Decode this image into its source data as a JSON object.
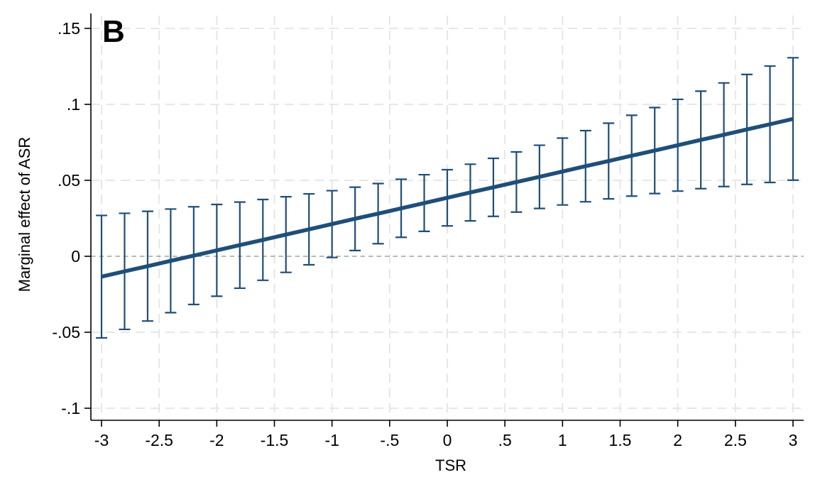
{
  "figure": {
    "panel_label": "B",
    "background": "#ffffff"
  },
  "chart_data": {
    "type": "line",
    "subtype": "marginal_effects_with_95ci_error_bars",
    "title": "",
    "panel_label": "B",
    "xlabel": "TSR",
    "ylabel": "Marginal effect of ASR",
    "xlim": [
      -3.09,
      3.16
    ],
    "ylim": [
      -0.108,
      0.158
    ],
    "x_tick_values": [
      -3,
      -2.5,
      -2,
      -1.5,
      -1,
      -0.5,
      0,
      0.5,
      1,
      1.5,
      2,
      2.5,
      3
    ],
    "x_tick_labels": [
      "-3",
      "-2.5",
      "-2",
      "-1.5",
      "-1",
      "-.5",
      "0",
      ".5",
      "1",
      "1.5",
      "2",
      "2.5",
      "3"
    ],
    "y_tick_values": [
      0.15,
      0.1,
      0.05,
      0,
      -0.05,
      -0.1
    ],
    "y_tick_labels": [
      ".15",
      ".1",
      ".05",
      "0",
      "-.05",
      "-.1"
    ],
    "grid": {
      "show": true,
      "style": "dashed",
      "axes": "both"
    },
    "zero_reference_line": true,
    "legend": {
      "show": false
    },
    "series": [
      {
        "name": "Marginal effect of ASR",
        "x": [
          -3.0,
          -2.8,
          -2.6,
          -2.4,
          -2.2,
          -2.0,
          -1.8,
          -1.6,
          -1.4,
          -1.2,
          -1.0,
          -0.8,
          -0.6,
          -0.4,
          -0.2,
          0.0,
          0.2,
          0.4,
          0.6,
          0.8,
          1.0,
          1.2,
          1.4,
          1.6,
          1.8,
          2.0,
          2.2,
          2.4,
          2.6,
          2.8,
          3.0
        ],
        "y": [
          -0.0134,
          -0.0099,
          -0.0065,
          -0.003,
          0.0004,
          0.0039,
          0.0074,
          0.0108,
          0.0143,
          0.0177,
          0.0212,
          0.0247,
          0.0281,
          0.0316,
          0.035,
          0.0385,
          0.042,
          0.0454,
          0.0489,
          0.0523,
          0.0558,
          0.0593,
          0.0627,
          0.0662,
          0.0696,
          0.0731,
          0.0766,
          0.08,
          0.0835,
          0.0869,
          0.0904
        ],
        "ci_low": [
          -0.0537,
          -0.0481,
          -0.0426,
          -0.0371,
          -0.0317,
          -0.0263,
          -0.021,
          -0.0158,
          -0.0106,
          -0.0056,
          -0.0008,
          0.0038,
          0.0083,
          0.0125,
          0.0164,
          0.02,
          0.0233,
          0.0263,
          0.0291,
          0.0315,
          0.0338,
          0.0359,
          0.0378,
          0.0396,
          0.0413,
          0.0429,
          0.0445,
          0.0459,
          0.0473,
          0.0486,
          0.0501
        ],
        "ci_high": [
          0.0269,
          0.0283,
          0.0296,
          0.0311,
          0.0326,
          0.0341,
          0.0357,
          0.0374,
          0.0392,
          0.0411,
          0.0432,
          0.0455,
          0.0479,
          0.0507,
          0.0537,
          0.057,
          0.0606,
          0.0645,
          0.0687,
          0.0731,
          0.0778,
          0.0827,
          0.0876,
          0.0928,
          0.0979,
          0.1033,
          0.1087,
          0.1141,
          0.1197,
          0.1252,
          0.1307
        ]
      }
    ],
    "colors": {
      "line": "#1f4e79",
      "error_bar": "#1f4e79",
      "grid": "#e4e4e4",
      "zero_line": "#8f8f8f",
      "axis": "#000000",
      "text": "#000000",
      "background": "#ffffff"
    }
  }
}
